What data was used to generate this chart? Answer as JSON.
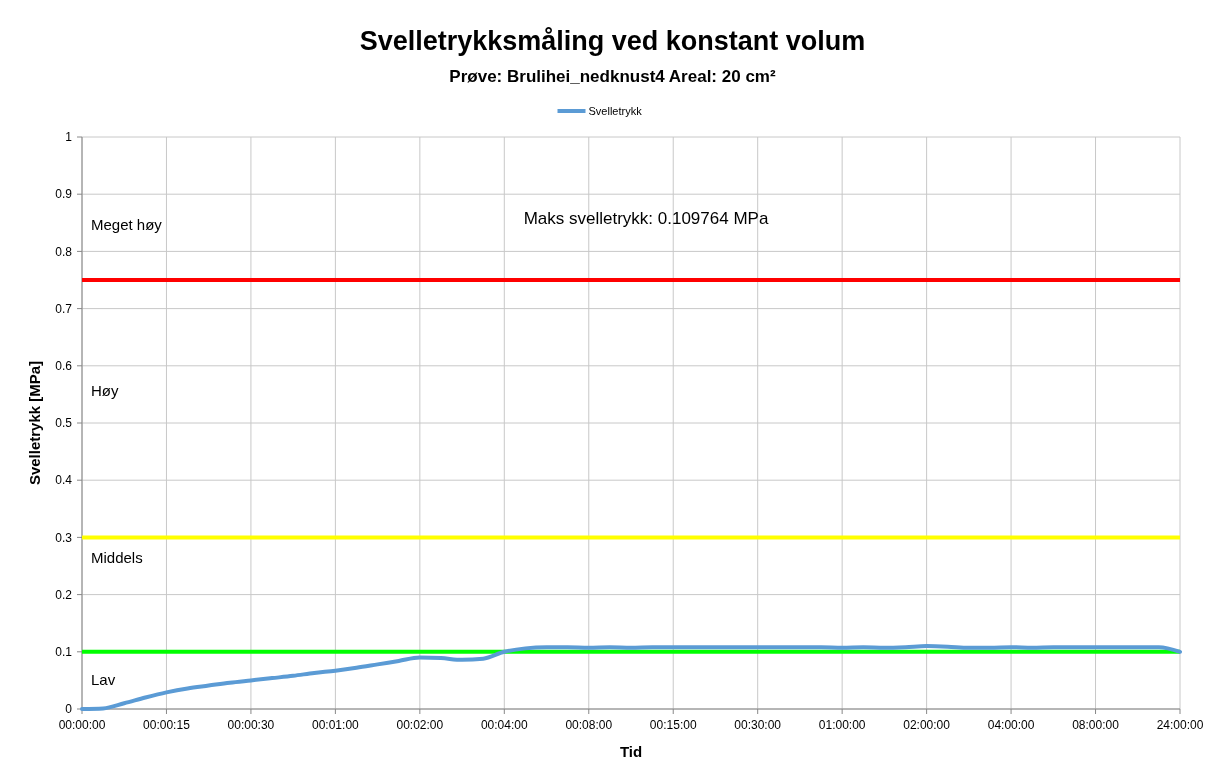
{
  "chart_data": {
    "type": "line",
    "title": "Svelletrykksmåling ved konstant volum",
    "subtitle": "Prøve: Brulihei_nedknust4  Areal: 20 cm²",
    "xlabel": "Tid",
    "ylabel": "Svelletrykk [MPa]",
    "categories": [
      "00:00:00",
      null,
      null,
      null,
      "00:00:15",
      null,
      null,
      null,
      "00:00:30",
      null,
      null,
      null,
      "00:01:00",
      null,
      null,
      null,
      "00:02:00",
      null,
      null,
      null,
      "00:04:00",
      null,
      null,
      null,
      "00:08:00",
      null,
      null,
      null,
      "00:15:00",
      null,
      null,
      null,
      "00:30:00",
      null,
      null,
      null,
      "01:00:00",
      null,
      null,
      null,
      "02:00:00",
      null,
      null,
      null,
      "04:00:00",
      null,
      null,
      null,
      "08:00:00",
      null,
      null,
      null,
      "24:00:00"
    ],
    "series": [
      {
        "name": "Svelletrykk",
        "color": "#5b9bd5",
        "values": [
          0,
          0.001,
          0.01,
          0.02,
          0.029,
          0.036,
          0.041,
          0.046,
          0.05,
          0.054,
          0.058,
          0.063,
          0.067,
          0.072,
          0.078,
          0.084,
          0.09,
          0.089,
          0.086,
          0.088,
          0.1,
          0.106,
          0.108,
          0.108,
          0.107,
          0.108,
          0.107,
          0.108,
          0.108,
          0.108,
          0.108,
          0.108,
          0.108,
          0.108,
          0.108,
          0.108,
          0.107,
          0.108,
          0.107,
          0.108,
          0.11,
          0.109,
          0.107,
          0.107,
          0.108,
          0.107,
          0.108,
          0.108,
          0.108,
          0.108,
          0.108,
          0.108,
          0.1
        ]
      }
    ],
    "ylim": [
      0,
      1
    ],
    "yticks": [
      0,
      0.1,
      0.2,
      0.3,
      0.4,
      0.5,
      0.6,
      0.7,
      0.8,
      0.9,
      1
    ],
    "grid": true,
    "legend": "top",
    "line_style": "solid",
    "marker": "none",
    "ref_lines": [
      {
        "axis": "y",
        "value": 0.75,
        "color": "#ff0000"
      },
      {
        "axis": "y",
        "value": 0.3,
        "color": "#ffff00"
      },
      {
        "axis": "y",
        "value": 0.1,
        "color": "#00ff00"
      }
    ],
    "annotations": [
      "Meget høy",
      "Høy",
      "Middels",
      "Lav",
      "Maks svelletrykk: 0.109764 MPa"
    ]
  }
}
